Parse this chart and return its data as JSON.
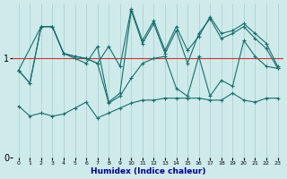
{
  "xlabel": "Humidex (Indice chaleur)",
  "ylabel": "",
  "background_color": "#ceeaea",
  "grid_color": "#aacece",
  "line_color": "#1a6e6e",
  "xlim": [
    -0.5,
    23.5
  ],
  "ylim": [
    0,
    1.55
  ],
  "yticks": [
    0,
    1
  ],
  "xticks": [
    0,
    1,
    2,
    3,
    4,
    5,
    6,
    7,
    8,
    9,
    10,
    11,
    12,
    13,
    14,
    15,
    16,
    17,
    18,
    19,
    20,
    21,
    22,
    23
  ],
  "hline_y": 1.0,
  "hline_color": "#cc3333",
  "s1_x": [
    0,
    1,
    2,
    3,
    4,
    5,
    6,
    7,
    8,
    9,
    10,
    11,
    12,
    13,
    14,
    15,
    16,
    17,
    18,
    19,
    20,
    21,
    22,
    23
  ],
  "s1_y": [
    0.88,
    0.75,
    1.32,
    1.32,
    1.05,
    1.02,
    1.0,
    0.95,
    1.12,
    0.92,
    1.5,
    1.18,
    1.38,
    1.08,
    1.32,
    1.08,
    1.22,
    1.42,
    1.25,
    1.28,
    1.35,
    1.25,
    1.15,
    0.92
  ],
  "s2_x": [
    0,
    1,
    2,
    3,
    4,
    5,
    6,
    7,
    8,
    9,
    10,
    11,
    12,
    13,
    14,
    15,
    16,
    17,
    18,
    19,
    20,
    21,
    22,
    23
  ],
  "s2_y": [
    0.88,
    0.75,
    1.32,
    1.32,
    1.05,
    1.02,
    1.0,
    0.95,
    0.55,
    0.62,
    0.8,
    0.95,
    1.0,
    1.02,
    0.7,
    0.62,
    1.02,
    0.62,
    0.78,
    0.72,
    1.18,
    1.02,
    0.92,
    0.9
  ],
  "s3_x": [
    0,
    1,
    2,
    3,
    4,
    5,
    6,
    7,
    8,
    9,
    10,
    11,
    12,
    13,
    14,
    15,
    16,
    17,
    18,
    19,
    20,
    21,
    22,
    23
  ],
  "s3_y": [
    0.52,
    0.42,
    0.45,
    0.42,
    0.44,
    0.5,
    0.56,
    0.4,
    0.45,
    0.5,
    0.55,
    0.58,
    0.58,
    0.6,
    0.6,
    0.6,
    0.6,
    0.58,
    0.58,
    0.65,
    0.58,
    0.56,
    0.6,
    0.6
  ],
  "s4_x": [
    0,
    2,
    3,
    4,
    5,
    6,
    7,
    8,
    9,
    10,
    11,
    12,
    13,
    14,
    15,
    16,
    17,
    18,
    19,
    20,
    21,
    22,
    23
  ],
  "s4_y": [
    0.88,
    1.32,
    1.32,
    1.05,
    1.0,
    0.95,
    1.12,
    0.56,
    0.65,
    1.48,
    1.15,
    1.35,
    1.05,
    1.28,
    0.95,
    1.25,
    1.4,
    1.2,
    1.25,
    1.32,
    1.2,
    1.1,
    0.9
  ]
}
